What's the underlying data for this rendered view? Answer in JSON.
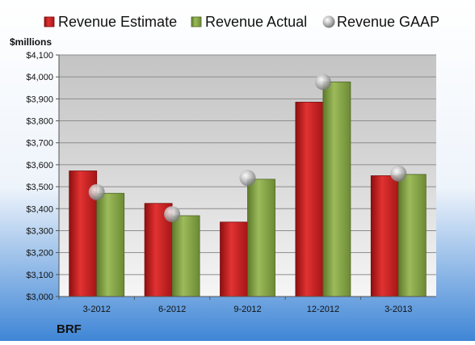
{
  "chart_data": {
    "type": "bar",
    "company": "BRF",
    "unit_label": "$millions",
    "categories": [
      "3-2012",
      "6-2012",
      "9-2012",
      "12-2012",
      "3-2013"
    ],
    "series": [
      {
        "name": "Revenue Estimate",
        "kind": "bar",
        "values": [
          3572,
          3424,
          3339,
          3885,
          3550
        ],
        "color": "#d42020"
      },
      {
        "name": "Revenue Actual",
        "kind": "bar",
        "values": [
          3470,
          3368,
          3534,
          3977,
          3556
        ],
        "color": "#8aa64a"
      },
      {
        "name": "Revenue GAAP",
        "kind": "marker",
        "values": [
          3475,
          3375,
          3540,
          3977,
          3560
        ],
        "color": "#b0b0b0"
      }
    ],
    "ylim": [
      3000,
      4100
    ],
    "ytick_step": 100,
    "ytick_labels": [
      "$3,000",
      "$3,100",
      "$3,200",
      "$3,300",
      "$3,400",
      "$3,500",
      "$3,600",
      "$3,700",
      "$3,800",
      "$3,900",
      "$4,000",
      "$4,100"
    ],
    "grid": true,
    "legend_position": "top"
  }
}
